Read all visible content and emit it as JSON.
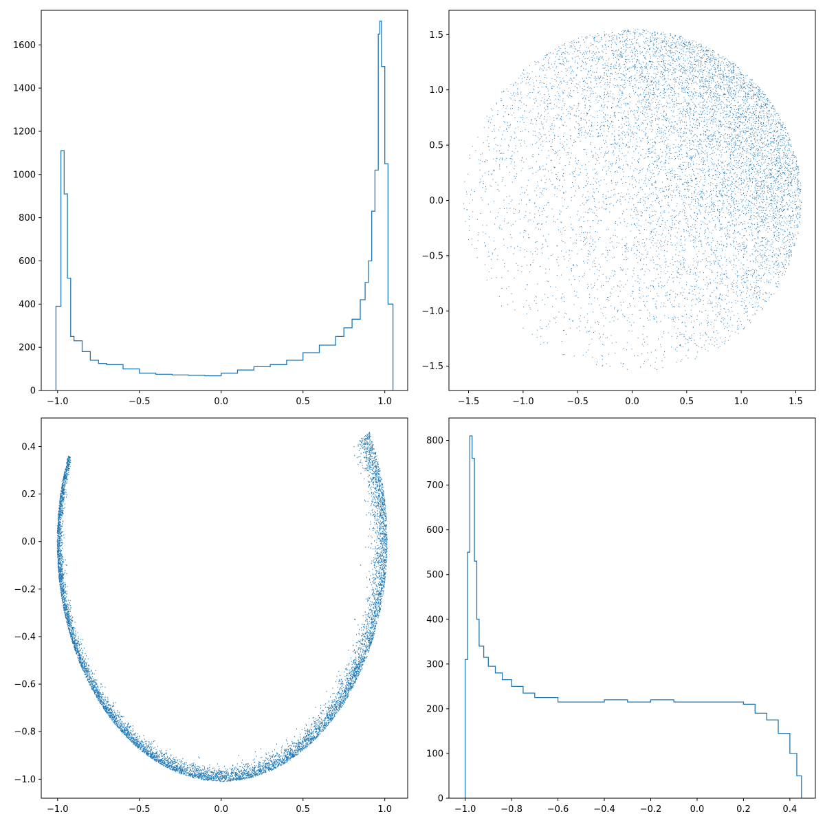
{
  "figure": {
    "background": "#ffffff",
    "series_color": "#1f77b4"
  },
  "chart_data": [
    {
      "type": "histogram",
      "panel": "top-left",
      "xlim": [
        -1.1,
        1.14
      ],
      "ylim": [
        0,
        1760
      ],
      "xticks": [
        -1.0,
        -0.5,
        0.0,
        0.5,
        1.0
      ],
      "xtick_labels": [
        "−1.0",
        "−0.5",
        "0.0",
        "0.5",
        "1.0"
      ],
      "yticks": [
        0,
        200,
        400,
        600,
        800,
        1000,
        1200,
        1400,
        1600
      ],
      "ytick_labels": [
        "0",
        "200",
        "400",
        "600",
        "800",
        "1000",
        "1200",
        "1400",
        "1600"
      ],
      "bins": {
        "x": [
          -1.01,
          -0.98,
          -0.96,
          -0.94,
          -0.92,
          -0.9,
          -0.85,
          -0.8,
          -0.75,
          -0.7,
          -0.6,
          -0.5,
          -0.4,
          -0.3,
          -0.2,
          -0.1,
          0.0,
          0.1,
          0.2,
          0.3,
          0.4,
          0.5,
          0.6,
          0.7,
          0.75,
          0.8,
          0.85,
          0.88,
          0.9,
          0.92,
          0.94,
          0.96,
          0.97,
          0.98,
          1.0,
          1.02,
          1.05
        ],
        "y": [
          390,
          1110,
          910,
          520,
          250,
          230,
          180,
          140,
          125,
          120,
          100,
          80,
          75,
          72,
          70,
          68,
          80,
          95,
          110,
          120,
          140,
          175,
          210,
          250,
          290,
          330,
          420,
          500,
          600,
          830,
          1020,
          1650,
          1710,
          1500,
          1050,
          400,
          0
        ]
      }
    },
    {
      "type": "scatter",
      "panel": "top-right",
      "xlim": [
        -1.68,
        1.68
      ],
      "ylim": [
        -1.72,
        1.72
      ],
      "xticks": [
        -1.5,
        -1.0,
        -0.5,
        0.0,
        0.5,
        1.0,
        1.5
      ],
      "xtick_labels": [
        "−1.5",
        "−1.0",
        "−0.5",
        "0.0",
        "0.5",
        "1.0",
        "1.5"
      ],
      "yticks": [
        -1.5,
        -1.0,
        -0.5,
        0.0,
        0.5,
        1.0,
        1.5
      ],
      "ytick_labels": [
        "−1.5",
        "−1.0",
        "−0.5",
        "0.0",
        "0.5",
        "1.0",
        "1.5"
      ],
      "disk": {
        "radius": 1.55,
        "dense_direction": [
          0.77,
          0.64
        ],
        "points": 9000
      }
    },
    {
      "type": "scatter",
      "panel": "bottom-left",
      "xlim": [
        -1.1,
        1.14
      ],
      "ylim": [
        -1.08,
        0.52
      ],
      "xticks": [
        -1.0,
        -0.5,
        0.0,
        0.5,
        1.0
      ],
      "xtick_labels": [
        "−1.0",
        "−0.5",
        "0.0",
        "0.5",
        "1.0"
      ],
      "yticks": [
        -1.0,
        -0.8,
        -0.6,
        -0.4,
        -0.2,
        0.0,
        0.2,
        0.4
      ],
      "ytick_labels": [
        "−1.0",
        "−0.8",
        "−0.6",
        "−0.4",
        "−0.2",
        "0.0",
        "0.2",
        "0.4"
      ],
      "arc": {
        "start_deg": 159,
        "end_deg": 387,
        "radius": 1.0,
        "band_width_start": 0.02,
        "band_width_end": 0.075,
        "points": 8000
      }
    },
    {
      "type": "histogram",
      "panel": "bottom-right",
      "xlim": [
        -1.07,
        0.51
      ],
      "ylim": [
        0,
        850
      ],
      "xticks": [
        -1.0,
        -0.8,
        -0.6,
        -0.4,
        -0.2,
        0.0,
        0.2,
        0.4
      ],
      "xtick_labels": [
        "−1.0",
        "−0.8",
        "−0.6",
        "−0.4",
        "−0.2",
        "0.0",
        "0.2",
        "0.4"
      ],
      "yticks": [
        0,
        100,
        200,
        300,
        400,
        500,
        600,
        700,
        800
      ],
      "ytick_labels": [
        "0",
        "100",
        "200",
        "300",
        "400",
        "500",
        "600",
        "700",
        "800"
      ],
      "bins": {
        "x": [
          -1.0,
          -0.99,
          -0.98,
          -0.97,
          -0.96,
          -0.95,
          -0.94,
          -0.92,
          -0.9,
          -0.87,
          -0.84,
          -0.8,
          -0.75,
          -0.7,
          -0.6,
          -0.5,
          -0.4,
          -0.3,
          -0.2,
          -0.1,
          0.0,
          0.1,
          0.2,
          0.25,
          0.3,
          0.35,
          0.4,
          0.43,
          0.45
        ],
        "y": [
          310,
          550,
          810,
          760,
          530,
          400,
          340,
          315,
          295,
          280,
          265,
          250,
          235,
          225,
          215,
          215,
          220,
          215,
          220,
          215,
          215,
          215,
          210,
          190,
          175,
          145,
          100,
          50,
          0
        ]
      }
    }
  ]
}
